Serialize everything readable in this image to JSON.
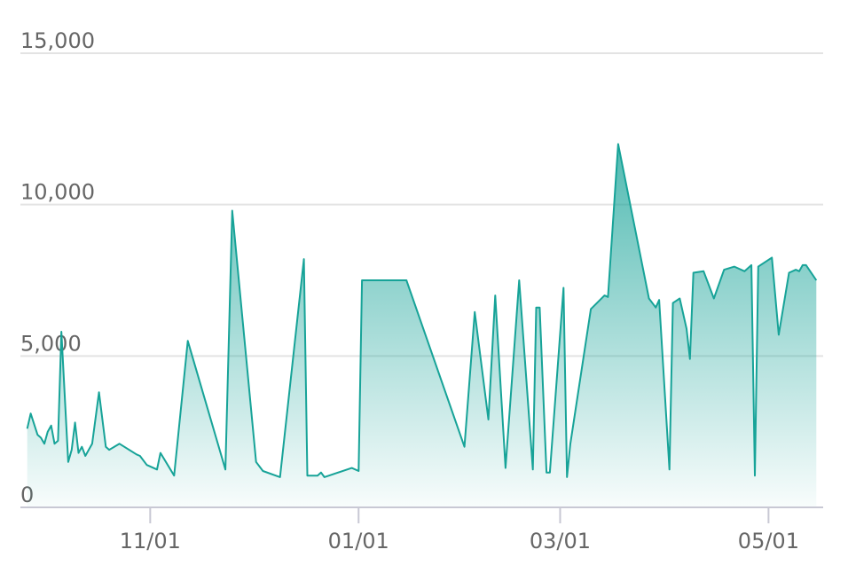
{
  "chart_data": {
    "type": "area",
    "color": "#17a398",
    "x": [
      "09/26",
      "09/27",
      "09/29",
      "09/30",
      "10/01",
      "10/02",
      "10/03",
      "10/04",
      "10/05",
      "10/06",
      "10/08",
      "10/09",
      "10/10",
      "10/11",
      "10/12",
      "10/13",
      "10/15",
      "10/17",
      "10/19",
      "10/20",
      "10/23",
      "10/28",
      "10/29",
      "10/31",
      "11/03",
      "11/04",
      "11/08",
      "11/12",
      "11/23",
      "11/25",
      "12/02",
      "12/04",
      "12/09",
      "12/16",
      "12/17",
      "12/20",
      "12/21",
      "12/22",
      "12/30",
      "01/01",
      "01/02",
      "01/15",
      "02/01",
      "02/04",
      "02/08",
      "02/10",
      "02/13",
      "02/17",
      "02/21",
      "02/22",
      "02/23",
      "02/25",
      "02/26",
      "03/02",
      "03/03",
      "03/04",
      "03/10",
      "03/14",
      "03/15",
      "03/18",
      "03/27",
      "03/29",
      "03/30",
      "04/02",
      "04/03",
      "04/05",
      "04/07",
      "04/08",
      "04/09",
      "04/12",
      "04/15",
      "04/18",
      "04/21",
      "04/24",
      "04/26",
      "04/27",
      "04/28",
      "05/02",
      "05/04",
      "05/07",
      "05/09",
      "05/10",
      "05/11",
      "05/12",
      "05/15"
    ],
    "values": [
      2600,
      3100,
      2400,
      2300,
      2100,
      2500,
      2700,
      2100,
      2200,
      5800,
      1500,
      1900,
      2800,
      1800,
      2000,
      1700,
      2100,
      3800,
      2000,
      1900,
      2100,
      1750,
      1700,
      1400,
      1250,
      1800,
      1050,
      5500,
      1250,
      9800,
      1500,
      1200,
      1000,
      8200,
      1050,
      1050,
      1150,
      1000,
      1300,
      1200,
      7500,
      7500,
      2000,
      6450,
      2900,
      7000,
      1300,
      7500,
      1250,
      6600,
      6600,
      1150,
      1150,
      7250,
      1000,
      2100,
      6550,
      7000,
      6950,
      12000,
      6900,
      6600,
      6850,
      1250,
      6750,
      6900,
      5900,
      4900,
      7750,
      7800,
      6900,
      7850,
      7950,
      7800,
      8000,
      1050,
      7950,
      8250,
      5700,
      7750,
      7850,
      7800,
      8000,
      8000,
      7500
    ],
    "xlim": [
      "09/24",
      "05/17"
    ],
    "xticks": [
      "11/01",
      "01/01",
      "03/01",
      "05/01"
    ],
    "ylim": [
      0,
      15000
    ],
    "yticks": [
      0,
      {
        "value": 5000,
        "label": "5,000"
      },
      {
        "value": 10000,
        "label": "10,000"
      },
      {
        "value": 15000,
        "label": "15,000"
      }
    ],
    "grid": true
  }
}
